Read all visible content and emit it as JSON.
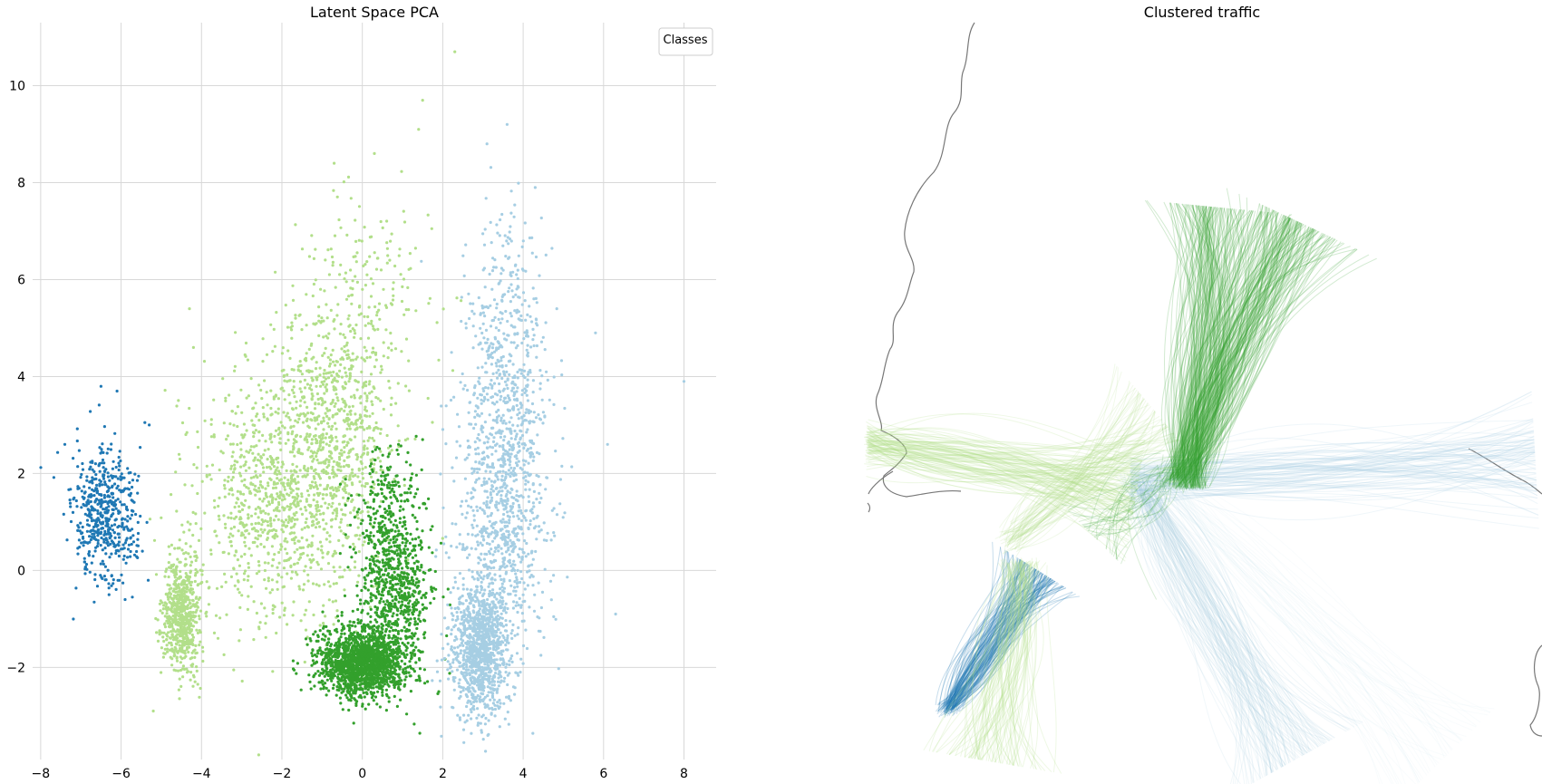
{
  "chart_data": [
    {
      "type": "scatter",
      "title": "Latent Space PCA",
      "xlabel": "",
      "ylabel": "",
      "xlim": [
        -8.2,
        8.8
      ],
      "ylim": [
        -3.9,
        11.3
      ],
      "xticks": [
        -8,
        -6,
        -4,
        -2,
        0,
        2,
        4,
        6,
        8
      ],
      "yticks": [
        -2,
        0,
        2,
        4,
        6,
        8,
        10
      ],
      "grid": true,
      "legend": {
        "title": "Classes",
        "placement": "top-right",
        "entries": []
      },
      "series": [
        {
          "color": "#1f78b4",
          "clusters": [
            {
              "center": [
                -6.4,
                1.1
              ],
              "spread": [
                0.4,
                0.7
              ],
              "count": 520
            }
          ],
          "sample_points": [
            [
              -6.5,
              3.8
            ],
            [
              -6.1,
              3.7
            ],
            [
              -5.3,
              3.0
            ],
            [
              -7.4,
              2.6
            ],
            [
              -5.9,
              -0.6
            ],
            [
              -6.3,
              -0.5
            ]
          ]
        },
        {
          "color": "#b2df8a",
          "clusters": [
            {
              "center": [
                -4.5,
                -0.9
              ],
              "spread": [
                0.22,
                0.6
              ],
              "count": 650
            },
            {
              "center": [
                -2.2,
                1.4
              ],
              "spread": [
                1.0,
                1.3
              ],
              "count": 900
            },
            {
              "center": [
                -0.7,
                3.1
              ],
              "spread": [
                0.8,
                1.3
              ],
              "count": 800
            },
            {
              "center": [
                0.2,
                6.0
              ],
              "spread": [
                0.8,
                1.0
              ],
              "count": 120
            }
          ],
          "sample_points": [
            [
              2.3,
              10.7
            ],
            [
              1.5,
              9.7
            ],
            [
              1.4,
              9.1
            ],
            [
              0.3,
              8.6
            ],
            [
              -0.7,
              8.4
            ],
            [
              -4.2,
              4.6
            ],
            [
              -4.3,
              5.4
            ],
            [
              -5.2,
              -2.9
            ]
          ]
        },
        {
          "color": "#33a02c",
          "clusters": [
            {
              "center": [
                0.0,
                -1.9
              ],
              "spread": [
                0.55,
                0.35
              ],
              "count": 1600
            },
            {
              "center": [
                0.8,
                -0.4
              ],
              "spread": [
                0.45,
                0.8
              ],
              "count": 700
            },
            {
              "center": [
                0.6,
                1.4
              ],
              "spread": [
                0.4,
                0.6
              ],
              "count": 200
            }
          ],
          "sample_points": [
            [
              1.5,
              2.7
            ],
            [
              0.9,
              2.6
            ],
            [
              -1.3,
              -2.3
            ],
            [
              1.9,
              -2.5
            ],
            [
              0.0,
              -2.8
            ]
          ]
        },
        {
          "color": "#a6cee3",
          "clusters": [
            {
              "center": [
                2.9,
                -1.6
              ],
              "spread": [
                0.35,
                0.7
              ],
              "count": 1100
            },
            {
              "center": [
                3.5,
                1.5
              ],
              "spread": [
                0.55,
                1.7
              ],
              "count": 1000
            },
            {
              "center": [
                3.6,
                4.9
              ],
              "spread": [
                0.5,
                1.3
              ],
              "count": 300
            }
          ],
          "sample_points": [
            [
              3.6,
              9.2
            ],
            [
              3.1,
              8.8
            ],
            [
              4.3,
              7.9
            ],
            [
              8.0,
              3.9
            ],
            [
              6.3,
              -0.9
            ],
            [
              6.1,
              2.6
            ],
            [
              3.3,
              -3.0
            ],
            [
              5.8,
              4.9
            ]
          ]
        }
      ]
    },
    {
      "type": "map",
      "title": "Clustered traffic",
      "series": [
        {
          "color": "#1f78b4",
          "bundles": [
            {
              "from": [
                0.12,
                0.93
              ],
              "to": [
                0.25,
                0.74
              ],
              "count": 120,
              "width": 14,
              "opacity": 0.25
            }
          ]
        },
        {
          "color": "#a6cee3",
          "bundles": [
            {
              "from": [
                0.39,
                0.62
              ],
              "to": [
                0.99,
                0.59
              ],
              "count": 90,
              "width": 24,
              "opacity": 0.18
            },
            {
              "from": [
                0.4,
                0.62
              ],
              "to": [
                0.63,
                1.0
              ],
              "count": 110,
              "width": 26,
              "opacity": 0.16
            },
            {
              "from": [
                0.44,
                0.62
              ],
              "to": [
                0.85,
                1.0
              ],
              "count": 40,
              "width": 30,
              "opacity": 0.07
            }
          ]
        },
        {
          "color": "#b2df8a",
          "bundles": [
            {
              "from": [
                0.0,
                0.57
              ],
              "to": [
                0.4,
                0.63
              ],
              "count": 100,
              "width": 22,
              "opacity": 0.22
            },
            {
              "from": [
                0.23,
                0.73
              ],
              "to": [
                0.18,
                1.0
              ],
              "count": 80,
              "width": 24,
              "opacity": 0.22
            },
            {
              "from": [
                0.21,
                0.7
              ],
              "to": [
                0.43,
                0.53
              ],
              "count": 60,
              "width": 22,
              "opacity": 0.18
            }
          ]
        },
        {
          "color": "#33a02c",
          "bundles": [
            {
              "from": [
                0.48,
                0.63
              ],
              "to": [
                0.52,
                0.25
              ],
              "count": 130,
              "width": 22,
              "opacity": 0.22
            },
            {
              "from": [
                0.46,
                0.62
              ],
              "to": [
                0.64,
                0.27
              ],
              "count": 130,
              "width": 22,
              "opacity": 0.22
            },
            {
              "from": [
                0.45,
                0.6
              ],
              "to": [
                0.34,
                0.7
              ],
              "count": 30,
              "width": 22,
              "opacity": 0.18
            }
          ]
        }
      ]
    }
  ]
}
